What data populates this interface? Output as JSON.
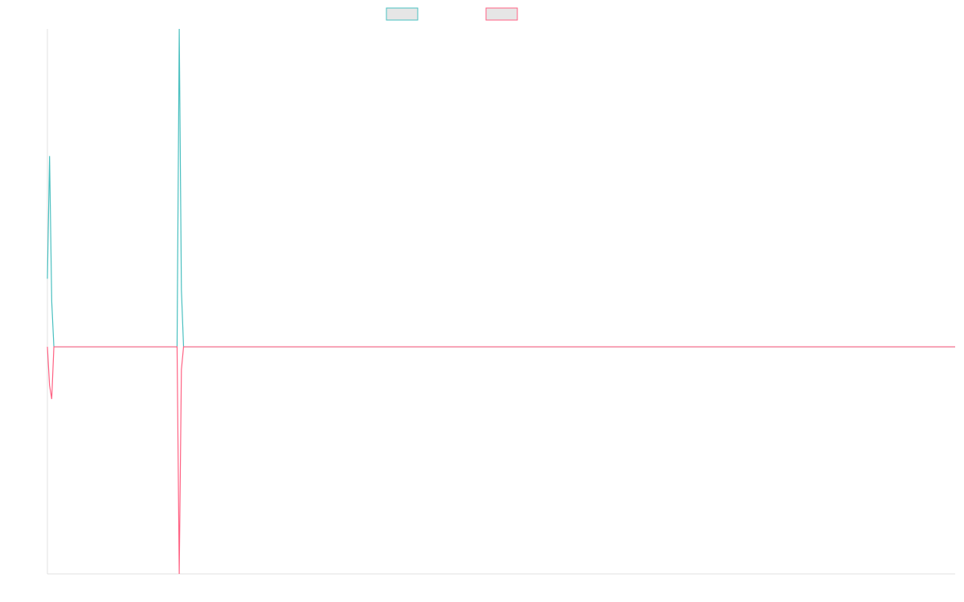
{
  "chart_data": {
    "type": "line",
    "x": [
      0,
      1,
      2,
      3,
      60,
      61,
      62,
      63,
      420
    ],
    "series": [
      {
        "color": "#4bc0c0",
        "values": [
          0.3,
          0.84,
          0.2,
          0,
          0,
          1.4,
          0.25,
          0,
          0
        ]
      },
      {
        "color": "#ff6384",
        "values": [
          0,
          -0.17,
          -0.23,
          0,
          0,
          -1,
          -0.1,
          0,
          0
        ]
      }
    ],
    "xlim": [
      0,
      420
    ],
    "ylim": [
      -1,
      1.4
    ],
    "grid": false
  }
}
